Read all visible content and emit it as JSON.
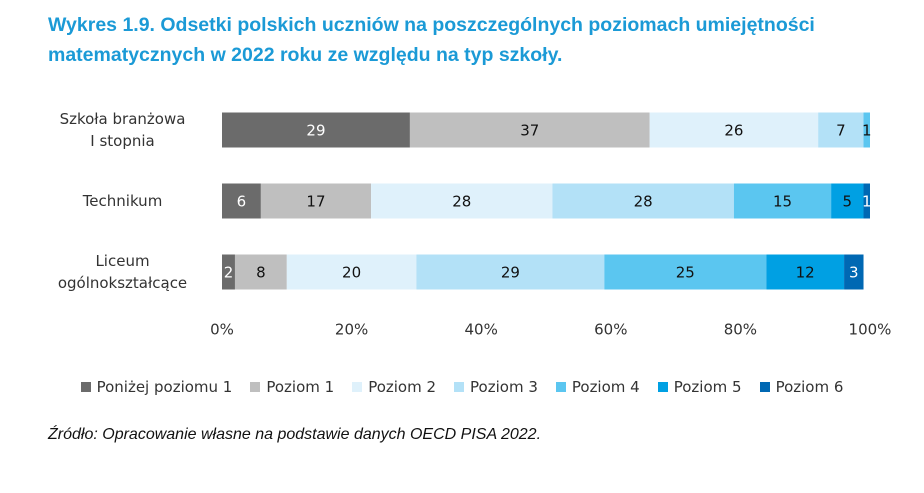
{
  "chart_data": {
    "type": "stacked-bar-horizontal",
    "title": "Wykres 1.9. Odsetki polskich uczniów na poszczególnych poziomach umiejętności matematycznych w 2022 roku ze względu na typ szkoły.",
    "categories": [
      "Szkoła branżowa\nI stopnia",
      "Technikum",
      "Liceum\nogólnokształcące"
    ],
    "series": [
      {
        "name": "Poniżej poziomu 1",
        "color": "#6b6b6b",
        "values": [
          29,
          6,
          2
        ]
      },
      {
        "name": "Poziom 1",
        "color": "#bfbfbf",
        "values": [
          37,
          17,
          8
        ]
      },
      {
        "name": "Poziom 2",
        "color": "#dff1fb",
        "values": [
          26,
          28,
          20
        ]
      },
      {
        "name": "Poziom 3",
        "color": "#b3e1f7",
        "values": [
          7,
          28,
          29
        ]
      },
      {
        "name": "Poziom 4",
        "color": "#5bc6f0",
        "values": [
          1,
          15,
          25
        ]
      },
      {
        "name": "Poziom 5",
        "color": "#00a0e3",
        "values": [
          null,
          5,
          12
        ]
      },
      {
        "name": "Poziom 6",
        "color": "#0068b3",
        "values": [
          null,
          1,
          3
        ]
      }
    ],
    "xlim": [
      0,
      100
    ],
    "xticks": [
      {
        "value": 0,
        "label": "0%"
      },
      {
        "value": 20,
        "label": "20%"
      },
      {
        "value": 40,
        "label": "40%"
      },
      {
        "value": 60,
        "label": "60%"
      },
      {
        "value": 80,
        "label": "80%"
      },
      {
        "value": 100,
        "label": "100%"
      }
    ],
    "source": "Źródło: Opracowanie własne na podstawie danych OECD PISA 2022."
  }
}
